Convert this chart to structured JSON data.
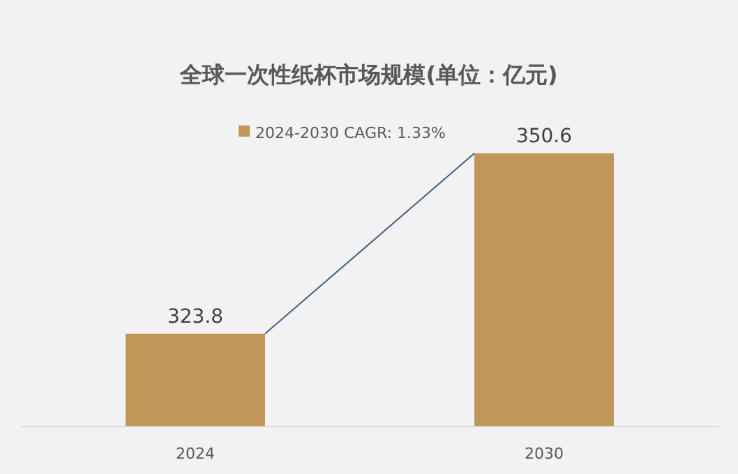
{
  "chart_data": {
    "type": "bar",
    "title": "全球一次性纸杯市场规模(单位：亿元)",
    "categories": [
      "2024",
      "2030"
    ],
    "series": [
      {
        "name": "2024-2030 CAGR: 1.33%",
        "color": "#c09659",
        "values": [
          323.8,
          350.6
        ]
      }
    ],
    "ylim": [
      310,
      350.6
    ],
    "data_labels": true,
    "legend": "top",
    "grid": false
  }
}
